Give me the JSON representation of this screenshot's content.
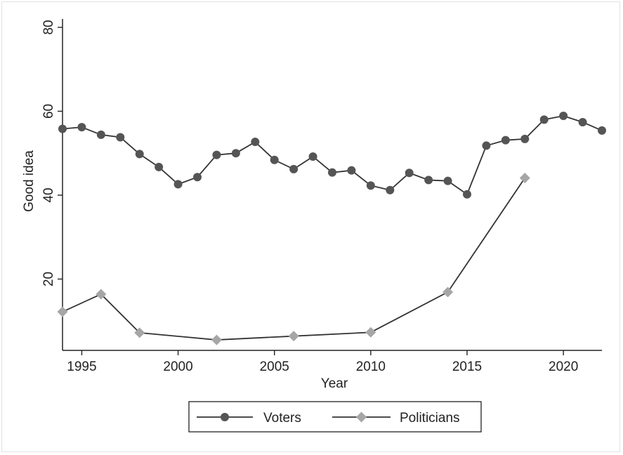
{
  "chart_data": {
    "type": "line",
    "title": "",
    "xlabel": "Year",
    "ylabel": "Good idea",
    "xlim": [
      1994,
      2022
    ],
    "ylim": [
      3,
      82
    ],
    "xticks": [
      "1995",
      "2000",
      "2005",
      "2010",
      "2015",
      "2020"
    ],
    "yticks": [
      "20",
      "40",
      "60",
      "80"
    ],
    "grid": false,
    "legend_position": "bottom",
    "series": [
      {
        "name": "Voters",
        "marker": "circle",
        "color": "#555555",
        "x": [
          1994,
          1995,
          1996,
          1997,
          1998,
          1999,
          2000,
          2001,
          2002,
          2003,
          2004,
          2005,
          2006,
          2007,
          2008,
          2009,
          2010,
          2011,
          2012,
          2013,
          2014,
          2015,
          2016,
          2017,
          2018,
          2019,
          2020,
          2021,
          2022
        ],
        "y": [
          55.8,
          56.2,
          54.4,
          53.8,
          49.8,
          46.7,
          42.6,
          44.3,
          49.6,
          50.0,
          52.7,
          48.4,
          46.2,
          49.2,
          45.4,
          45.9,
          42.3,
          41.2,
          45.3,
          43.6,
          43.4,
          40.2,
          51.8,
          53.1,
          53.4,
          58.0,
          58.9,
          57.4,
          55.4
        ]
      },
      {
        "name": "Politicians",
        "marker": "diamond",
        "color": "#a6a6a6",
        "x": [
          1994,
          1996,
          1998,
          2002,
          2006,
          2010,
          2014,
          2018
        ],
        "y": [
          12.2,
          16.4,
          7.2,
          5.5,
          6.4,
          7.3,
          16.9,
          44.1
        ]
      }
    ]
  }
}
